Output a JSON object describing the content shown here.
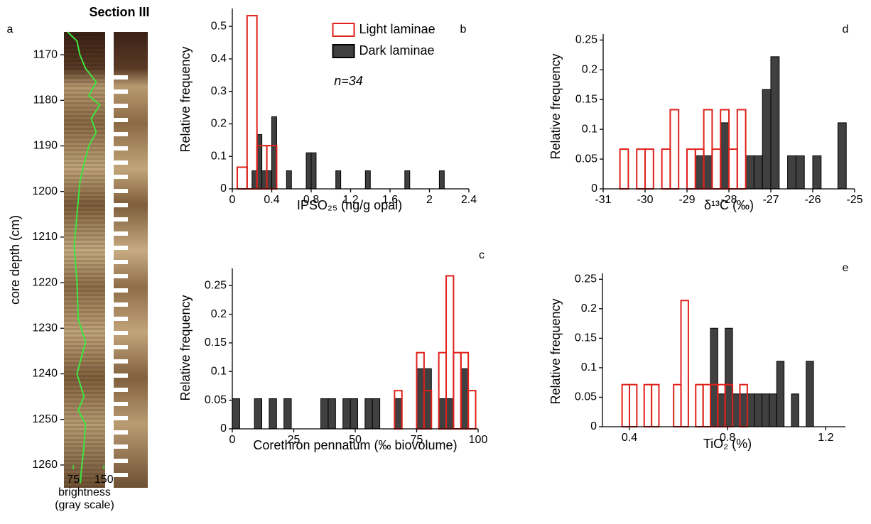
{
  "chart_data": [
    {
      "type": "line",
      "panel_label": "a",
      "title": "Section III",
      "ylabel": "core depth (cm)",
      "xlabel": [
        "brightness",
        "(gray scale)"
      ],
      "xlim": [
        52,
        160
      ],
      "ylim": [
        1165,
        1265
      ],
      "y_inverted": true,
      "xticks": [
        75,
        150
      ],
      "yticks": [
        1170,
        1180,
        1190,
        1200,
        1210,
        1220,
        1230,
        1240,
        1250,
        1260
      ],
      "series": [
        {
          "color": "#3ee63e",
          "depth": [
            1165,
            1167,
            1170,
            1173,
            1176,
            1179,
            1181,
            1184,
            1187,
            1190,
            1194,
            1198,
            1205,
            1212,
            1220,
            1228,
            1233,
            1236,
            1240,
            1245,
            1248,
            1251,
            1256,
            1260,
            1264
          ],
          "values": [
            61,
            84,
            91,
            105,
            131,
            113,
            140,
            119,
            131,
            113,
            101,
            91,
            84,
            77,
            84,
            87,
            105,
            96,
            84,
            101,
            87,
            105,
            101,
            96,
            92
          ]
        }
      ]
    },
    {
      "type": "histogram",
      "panel_label": "b",
      "xlabel": "IPSO₂₅ (ng/g opal)",
      "ylabel": "Relative frequency",
      "annotation": "n=34",
      "legend": "top",
      "xlim": [
        0,
        2.4
      ],
      "ylim": [
        0,
        0.555
      ],
      "xticks": [
        0,
        0.4,
        0.8,
        1.2,
        1.6,
        2,
        2.4
      ],
      "yticks": [
        0,
        0.1,
        0.2,
        0.3,
        0.4,
        0.5
      ],
      "series": [
        {
          "name": "Dark laminae",
          "color": "#404040",
          "filled": true,
          "bins": [
            0.2,
            0.25,
            0.3,
            0.35,
            0.4,
            0.45,
            0.5,
            0.55,
            0.6,
            0.65,
            0.7,
            0.75,
            0.8,
            0.85,
            0.9,
            0.95,
            1,
            1.05,
            1.1,
            1.15,
            1.2,
            1.25,
            1.3,
            1.35,
            1.4,
            1.45,
            1.5,
            1.55,
            1.6,
            1.65,
            1.7,
            1.75,
            1.8,
            1.85,
            1.9,
            1.95,
            2,
            2.05,
            2.1,
            2.15
          ],
          "values": [
            0.0556,
            0.167,
            0.0556,
            0.0556,
            0.222,
            0,
            0,
            0.0556,
            0,
            0,
            0,
            0.111,
            0.111,
            0,
            0,
            0,
            0,
            0.0556,
            0,
            0,
            0,
            0,
            0,
            0.0556,
            0,
            0,
            0,
            0,
            0,
            0,
            0,
            0.0556,
            0,
            0,
            0,
            0,
            0,
            0,
            0.0556
          ]
        },
        {
          "name": "Light laminae",
          "color": "#e0201b",
          "filled": false,
          "bins": [
            0.05,
            0.15,
            0.25,
            0.35,
            0.45
          ],
          "values": [
            0.0667,
            0.533,
            0.133,
            0.133
          ]
        }
      ]
    },
    {
      "type": "histogram",
      "panel_label": "c",
      "xlabel": "Corethron pennatum (‰ biovolume)",
      "ylabel": "Relative frequency",
      "xlim": [
        0,
        100
      ],
      "ylim": [
        0,
        0.28
      ],
      "xticks": [
        0,
        25,
        50,
        75,
        100
      ],
      "yticks": [
        0,
        0.05,
        0.1,
        0.15,
        0.2,
        0.25
      ],
      "series": [
        {
          "color": "#404040",
          "filled": true,
          "bins": [
            0,
            3,
            6,
            9,
            12,
            15,
            18,
            21,
            24,
            27,
            30,
            33,
            36,
            39,
            42,
            45,
            48,
            51,
            54,
            57,
            60,
            63,
            66,
            69,
            72,
            75,
            78,
            81,
            84,
            87,
            90,
            93,
            96,
            99
          ],
          "values": [
            0.0526,
            0,
            0,
            0.0526,
            0,
            0.0526,
            0,
            0.0526,
            0,
            0,
            0,
            0,
            0.0526,
            0.0526,
            0,
            0.0526,
            0.0526,
            0,
            0.0526,
            0.0526,
            0,
            0,
            0.0526,
            0,
            0,
            0.105,
            0.105,
            0,
            0.0526,
            0.0526,
            0,
            0.105,
            0
          ]
        },
        {
          "color": "#e0201b",
          "filled": false,
          "bins": [
            66,
            69,
            72,
            75,
            78,
            81,
            84,
            87,
            90,
            93,
            96,
            99
          ],
          "values": [
            0.0667,
            0,
            0,
            0.133,
            0.0667,
            0,
            0.133,
            0.267,
            0.133,
            0.133,
            0.0667
          ]
        }
      ]
    },
    {
      "type": "histogram",
      "panel_label": "d",
      "xlabel": "δ¹³C (‰)",
      "ylabel": "Relative frequency",
      "xlim": [
        -31,
        -25
      ],
      "ylim": [
        0,
        0.26
      ],
      "xticks": [
        -31,
        -30,
        -29,
        -28,
        -27,
        -26,
        -25
      ],
      "yticks": [
        0,
        0.05,
        0.1,
        0.15,
        0.2,
        0.25
      ],
      "series": [
        {
          "color": "#404040",
          "filled": true,
          "bins": [
            -28.8,
            -28.6,
            -28.4,
            -28.2,
            -28,
            -27.8,
            -27.6,
            -27.4,
            -27.2,
            -27,
            -26.8,
            -26.6,
            -26.4,
            -26.2,
            -26,
            -25.8,
            -25.6,
            -25.4,
            -25.2
          ],
          "values": [
            0.0556,
            0.0556,
            0,
            0.111,
            0,
            0,
            0.0556,
            0.0556,
            0.167,
            0.222,
            0,
            0.0556,
            0.0556,
            0,
            0.0556,
            0,
            0,
            0.111
          ]
        },
        {
          "color": "#e0201b",
          "filled": false,
          "bins": [
            -30.6,
            -30.4,
            -30.2,
            -30,
            -29.8,
            -29.6,
            -29.4,
            -29.2,
            -29,
            -28.8,
            -28.6,
            -28.4,
            -28.2,
            -28,
            -27.8,
            -27.6
          ],
          "values": [
            0.0667,
            0,
            0.0667,
            0.0667,
            0,
            0.0667,
            0.133,
            0,
            0.0667,
            0.0667,
            0.133,
            0.0667,
            0.133,
            0.0667,
            0.133
          ]
        }
      ]
    },
    {
      "type": "histogram",
      "panel_label": "e",
      "xlabel": "TiO₂ (%)",
      "ylabel": "Relative frequency",
      "xlim": [
        0.29,
        1.28
      ],
      "ylim": [
        0,
        0.26
      ],
      "xticks": [
        0.4,
        0.8,
        1.2
      ],
      "yticks": [
        0,
        0.05,
        0.1,
        0.15,
        0.2,
        0.25
      ],
      "series": [
        {
          "color": "#404040",
          "filled": true,
          "bins": [
            0.73,
            0.76,
            0.79,
            0.82,
            0.85,
            0.88,
            0.91,
            0.94,
            0.97,
            1,
            1.03,
            1.06,
            1.09,
            1.12,
            1.15
          ],
          "values": [
            0.167,
            0.0556,
            0.167,
            0.0556,
            0.0556,
            0.0556,
            0.0556,
            0.0556,
            0.0556,
            0.111,
            0,
            0.0556,
            0,
            0.111
          ]
        },
        {
          "color": "#e0201b",
          "filled": false,
          "bins": [
            0.37,
            0.4,
            0.43,
            0.46,
            0.49,
            0.52,
            0.55,
            0.58,
            0.61,
            0.64,
            0.67,
            0.7,
            0.73,
            0.76,
            0.79,
            0.82,
            0.85,
            0.88
          ],
          "values": [
            0.0714,
            0.0714,
            0,
            0.0714,
            0.0714,
            0,
            0,
            0.0714,
            0.214,
            0,
            0.0714,
            0.0714,
            0.0714,
            0.0714,
            0.0714,
            0,
            0.0714
          ]
        }
      ]
    }
  ]
}
